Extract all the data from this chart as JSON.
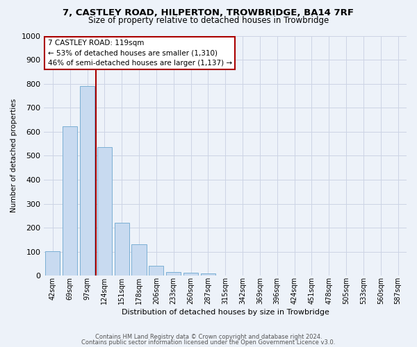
{
  "title1": "7, CASTLEY ROAD, HILPERTON, TROWBRIDGE, BA14 7RF",
  "title2": "Size of property relative to detached houses in Trowbridge",
  "xlabel": "Distribution of detached houses by size in Trowbridge",
  "ylabel": "Number of detached properties",
  "categories": [
    "42sqm",
    "69sqm",
    "97sqm",
    "124sqm",
    "151sqm",
    "178sqm",
    "206sqm",
    "233sqm",
    "260sqm",
    "287sqm",
    "315sqm",
    "342sqm",
    "369sqm",
    "396sqm",
    "424sqm",
    "451sqm",
    "478sqm",
    "505sqm",
    "533sqm",
    "560sqm",
    "587sqm"
  ],
  "values": [
    102,
    622,
    790,
    537,
    220,
    132,
    40,
    15,
    12,
    10,
    0,
    0,
    0,
    0,
    0,
    0,
    0,
    0,
    0,
    0,
    0
  ],
  "bar_color": "#c8daf0",
  "bar_edge_color": "#7bafd4",
  "vline_x": 2.5,
  "vline_color": "#aa0000",
  "annotation_text": "7 CASTLEY ROAD: 119sqm\n← 53% of detached houses are smaller (1,310)\n46% of semi-detached houses are larger (1,137) →",
  "annotation_facecolor": "#ffffff",
  "annotation_edgecolor": "#aa0000",
  "ylim": [
    0,
    1000
  ],
  "yticks": [
    0,
    100,
    200,
    300,
    400,
    500,
    600,
    700,
    800,
    900,
    1000
  ],
  "footer1": "Contains HM Land Registry data © Crown copyright and database right 2024.",
  "footer2": "Contains public sector information licensed under the Open Government Licence v3.0.",
  "grid_color": "#ccd4e5",
  "bg_color": "#edf2f9"
}
